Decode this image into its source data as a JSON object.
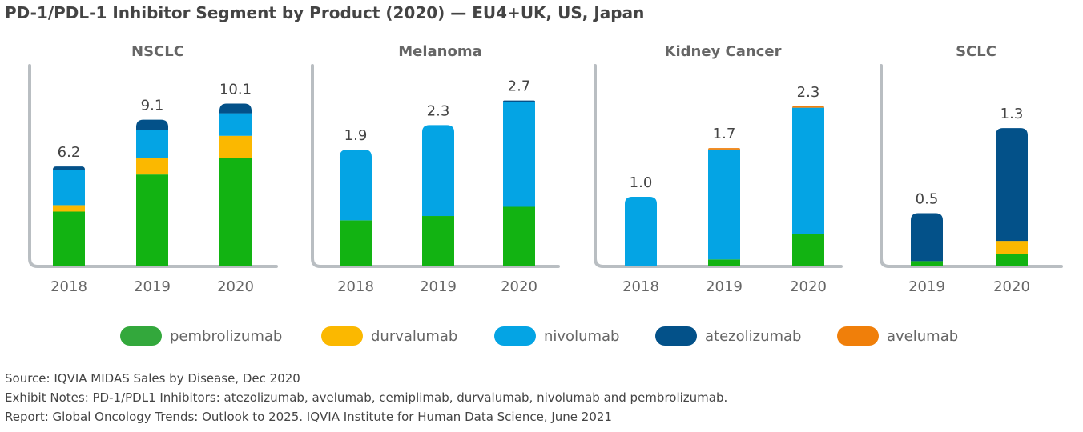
{
  "title": "PD-1/PDL-1 Inhibitor Segment by Product (2020) — EU4+UK, US, Japan",
  "colors": {
    "pembrolizumab": "#12b312",
    "durvalumab": "#fbb800",
    "nivolumab": "#04a4e4",
    "atezolizumab": "#035189",
    "avelumab": "#f07f0a",
    "axis": "#b9bec2"
  },
  "legend": [
    {
      "key": "pembrolizumab",
      "label": "pembrolizumab",
      "color": "#33a83c"
    },
    {
      "key": "durvalumab",
      "label": "durvalumab",
      "color": "#fbb800"
    },
    {
      "key": "nivolumab",
      "label": "nivolumab",
      "color": "#04a4e4"
    },
    {
      "key": "atezolizumab",
      "label": "atezolizumab",
      "color": "#035189"
    },
    {
      "key": "avelumab",
      "label": "avelumab",
      "color": "#f07f0a"
    }
  ],
  "chart_data": [
    {
      "type": "bar",
      "title": "NSCLC",
      "categories": [
        "2018",
        "2019",
        "2020"
      ],
      "totals": [
        "6.2",
        "9.1",
        "10.1"
      ],
      "series": [
        {
          "name": "pembrolizumab",
          "values": [
            3.4,
            5.7,
            6.7
          ]
        },
        {
          "name": "durvalumab",
          "values": [
            0.4,
            1.05,
            1.4
          ]
        },
        {
          "name": "nivolumab",
          "values": [
            2.2,
            1.7,
            1.4
          ]
        },
        {
          "name": "atezolizumab",
          "values": [
            0.2,
            0.65,
            0.6
          ]
        },
        {
          "name": "avelumab",
          "values": [
            0,
            0,
            0
          ]
        }
      ]
    },
    {
      "type": "bar",
      "title": "Melanoma",
      "categories": [
        "2018",
        "2019",
        "2020"
      ],
      "totals": [
        "1.9",
        "2.3",
        "2.7"
      ],
      "series": [
        {
          "name": "pembrolizumab",
          "values": [
            0.75,
            0.82,
            0.97
          ]
        },
        {
          "name": "durvalumab",
          "values": [
            0,
            0,
            0
          ]
        },
        {
          "name": "nivolumab",
          "values": [
            1.15,
            1.48,
            1.71
          ]
        },
        {
          "name": "atezolizumab",
          "values": [
            0,
            0,
            0.02
          ]
        },
        {
          "name": "avelumab",
          "values": [
            0,
            0,
            0
          ]
        }
      ]
    },
    {
      "type": "bar",
      "title": "Kidney Cancer",
      "categories": [
        "2018",
        "2019",
        "2020"
      ],
      "totals": [
        "1.0",
        "1.7",
        "2.3"
      ],
      "series": [
        {
          "name": "pembrolizumab",
          "values": [
            0,
            0.1,
            0.46
          ]
        },
        {
          "name": "durvalumab",
          "values": [
            0,
            0,
            0
          ]
        },
        {
          "name": "nivolumab",
          "values": [
            1.0,
            1.58,
            1.82
          ]
        },
        {
          "name": "atezolizumab",
          "values": [
            0,
            0,
            0
          ]
        },
        {
          "name": "avelumab",
          "values": [
            0,
            0.02,
            0.02
          ]
        }
      ]
    },
    {
      "type": "bar",
      "title": "SCLC",
      "categories": [
        "2019",
        "2020"
      ],
      "totals": [
        "0.5",
        "1.3"
      ],
      "series": [
        {
          "name": "pembrolizumab",
          "values": [
            0.05,
            0.12
          ]
        },
        {
          "name": "durvalumab",
          "values": [
            0,
            0.12
          ]
        },
        {
          "name": "nivolumab",
          "values": [
            0,
            0
          ]
        },
        {
          "name": "atezolizumab",
          "values": [
            0.45,
            1.06
          ]
        },
        {
          "name": "avelumab",
          "values": [
            0,
            0
          ]
        }
      ]
    }
  ],
  "notes": {
    "source": "Source: IQVIA MIDAS Sales by Disease, Dec 2020",
    "exhibit": "Exhibit Notes: PD-1/PDL1 Inhibitors: atezolizumab, avelumab, cemiplimab, durvalumab, nivolumab and pembrolizumab.",
    "report": "Report: Global Oncology Trends: Outlook to 2025. IQVIA Institute for Human Data Science, June 2021"
  }
}
